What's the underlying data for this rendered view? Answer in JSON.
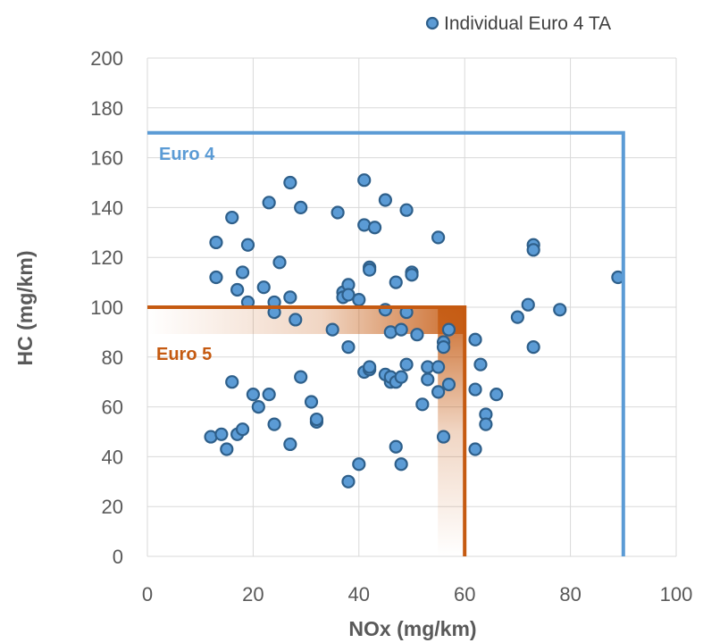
{
  "colors": {
    "point_fill": "#5b9bd5",
    "point_stroke": "#2e5f8a",
    "euro4": "#5b9bd5",
    "euro5": "#c55a11",
    "grid": "#d9d9d9",
    "text": "#595959"
  },
  "chart_data": {
    "type": "scatter",
    "xlabel": "NOx (mg/km)",
    "ylabel": "HC (mg/km)",
    "xlim": [
      0,
      100
    ],
    "ylim": [
      0,
      200
    ],
    "x_ticks": [
      0,
      20,
      40,
      60,
      80,
      100
    ],
    "y_ticks": [
      0,
      20,
      40,
      60,
      80,
      100,
      120,
      140,
      160,
      180,
      200
    ],
    "grid": true,
    "legend_position": "top-right",
    "series": [
      {
        "name": "Individual Euro 4 TA",
        "marker": "circle",
        "points": [
          [
            12,
            48
          ],
          [
            14,
            49
          ],
          [
            15,
            43
          ],
          [
            16,
            70
          ],
          [
            17,
            49
          ],
          [
            18,
            51
          ],
          [
            20,
            65
          ],
          [
            21,
            60
          ],
          [
            23,
            65
          ],
          [
            24,
            53
          ],
          [
            27,
            45
          ],
          [
            29,
            72
          ],
          [
            31,
            62
          ],
          [
            32,
            54
          ],
          [
            32,
            55
          ],
          [
            38,
            30
          ],
          [
            40,
            37
          ],
          [
            41,
            74
          ],
          [
            42,
            75
          ],
          [
            42,
            76
          ],
          [
            45,
            73
          ],
          [
            46,
            70
          ],
          [
            46,
            72
          ],
          [
            47,
            44
          ],
          [
            48,
            37
          ],
          [
            47,
            70
          ],
          [
            48,
            72
          ],
          [
            49,
            77
          ],
          [
            52,
            61
          ],
          [
            53,
            71
          ],
          [
            53,
            76
          ],
          [
            55,
            66
          ],
          [
            55,
            76
          ],
          [
            56,
            48
          ],
          [
            57,
            69
          ],
          [
            62,
            43
          ],
          [
            62,
            67
          ],
          [
            63,
            77
          ],
          [
            64,
            57
          ],
          [
            64,
            53
          ],
          [
            66,
            65
          ],
          [
            62,
            87
          ],
          [
            73,
            84
          ],
          [
            70,
            96
          ],
          [
            72,
            101
          ],
          [
            78,
            99
          ],
          [
            73,
            125
          ],
          [
            73,
            123
          ],
          [
            89,
            112
          ],
          [
            13,
            126
          ],
          [
            13,
            112
          ],
          [
            16,
            136
          ],
          [
            17,
            107
          ],
          [
            18,
            114
          ],
          [
            19,
            102
          ],
          [
            19,
            125
          ],
          [
            22,
            108
          ],
          [
            23,
            142
          ],
          [
            24,
            98
          ],
          [
            24,
            102
          ],
          [
            25,
            118
          ],
          [
            27,
            104
          ],
          [
            27,
            150
          ],
          [
            28,
            95
          ],
          [
            29,
            140
          ],
          [
            35,
            91
          ],
          [
            36,
            138
          ],
          [
            37,
            106
          ],
          [
            37,
            104
          ],
          [
            38,
            109
          ],
          [
            38,
            105
          ],
          [
            38,
            84
          ],
          [
            40,
            103
          ],
          [
            41,
            133
          ],
          [
            41,
            151
          ],
          [
            42,
            116
          ],
          [
            42,
            115
          ],
          [
            43,
            132
          ],
          [
            45,
            143
          ],
          [
            45,
            99
          ],
          [
            46,
            90
          ],
          [
            47,
            110
          ],
          [
            48,
            91
          ],
          [
            49,
            98
          ],
          [
            49,
            139
          ],
          [
            50,
            114
          ],
          [
            50,
            113
          ],
          [
            51,
            89
          ],
          [
            55,
            128
          ],
          [
            56,
            86
          ],
          [
            56,
            84
          ],
          [
            57,
            91
          ]
        ]
      }
    ],
    "annotations": [
      {
        "label": "Euro 4",
        "hc_limit": 170,
        "nox_limit": 90
      },
      {
        "label": "Euro 5",
        "hc_limit": 100,
        "nox_limit": 60
      }
    ]
  }
}
